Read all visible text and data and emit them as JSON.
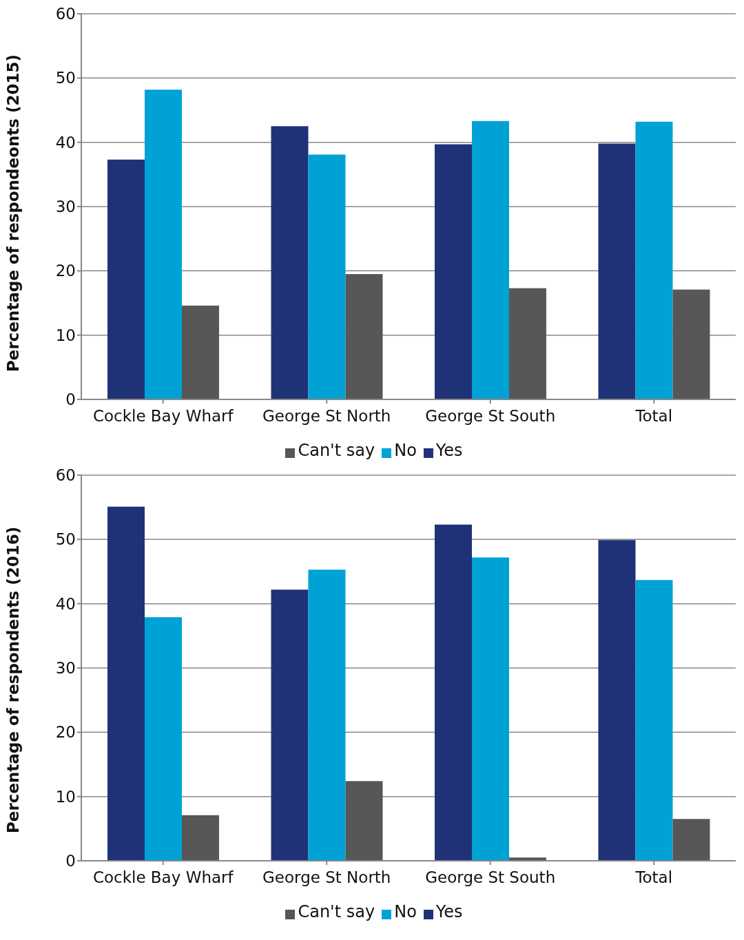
{
  "chart_data": [
    {
      "type": "bar",
      "ylabel": "Percentage of respondeonts (2015)",
      "categories": [
        "Cockle Bay Wharf",
        "George St North",
        "George St South",
        "Total"
      ],
      "series": [
        {
          "name": "Yes",
          "color": "#1f3278",
          "values": [
            37.3,
            42.5,
            39.7,
            39.8
          ]
        },
        {
          "name": "No",
          "color": "#00a2d6",
          "values": [
            48.2,
            38.1,
            43.3,
            43.2
          ]
        },
        {
          "name": "Can't say",
          "color": "#575757",
          "values": [
            14.6,
            19.5,
            17.3,
            17.1
          ]
        }
      ],
      "ylim": [
        0,
        60
      ],
      "yticks": [
        0,
        10,
        20,
        30,
        40,
        50,
        60
      ],
      "grid": "y",
      "legend": "bottom"
    },
    {
      "type": "bar",
      "ylabel": "Percentage of respondents (2016)",
      "categories": [
        "Cockle Bay Wharf",
        "George St North",
        "George St South",
        "Total"
      ],
      "series": [
        {
          "name": "Yes",
          "color": "#1f3278",
          "values": [
            55.1,
            42.2,
            52.3,
            49.9
          ]
        },
        {
          "name": "No",
          "color": "#00a2d6",
          "values": [
            37.9,
            45.3,
            47.2,
            43.7
          ]
        },
        {
          "name": "Can't say",
          "color": "#575757",
          "values": [
            7.1,
            12.4,
            0.5,
            6.5
          ]
        }
      ],
      "ylim": [
        0,
        60
      ],
      "yticks": [
        0,
        10,
        20,
        30,
        40,
        50,
        60
      ],
      "grid": "y",
      "legend": "bottom"
    }
  ]
}
